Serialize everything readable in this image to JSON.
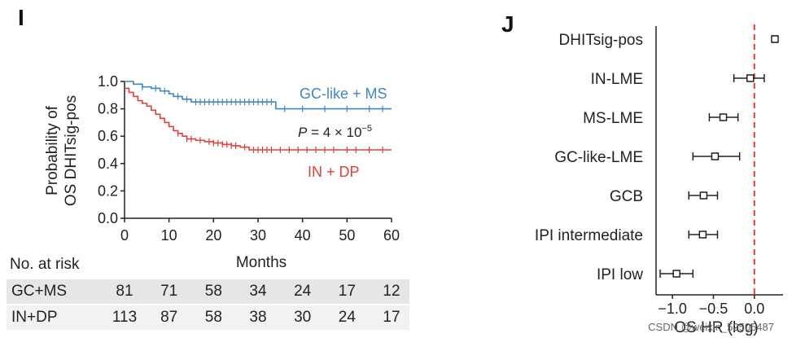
{
  "panels": {
    "left_letter": "I",
    "right_letter": "J"
  },
  "chart_data": [
    {
      "type": "line",
      "title": "",
      "xlabel": "Months",
      "ylabel_line1": "Probability of",
      "ylabel_line2": "OS DHITsig-pos",
      "xlim": [
        0,
        60
      ],
      "ylim": [
        0.0,
        1.0
      ],
      "xticks": [
        "0",
        "10",
        "20",
        "30",
        "40",
        "50",
        "60"
      ],
      "yticks": [
        "0.0",
        "0.2",
        "0.4",
        "0.6",
        "0.8",
        "1.0"
      ],
      "annotation_p": "P",
      "annotation_rest": " = 4 × 10",
      "annotation_exp": "−5",
      "series": [
        {
          "name": "GC-like + MS",
          "color": "#3d87c5",
          "x": [
            0,
            2,
            4,
            6,
            8,
            10,
            11,
            13,
            15,
            34,
            60
          ],
          "y": [
            1.0,
            0.98,
            0.96,
            0.95,
            0.93,
            0.91,
            0.89,
            0.87,
            0.85,
            0.8,
            0.8
          ],
          "censor_x": [
            4,
            7,
            9,
            12,
            14,
            16,
            17,
            18,
            19,
            20,
            21,
            22,
            23,
            24,
            25,
            26,
            27,
            28,
            29,
            30,
            31,
            32,
            33,
            36,
            40,
            45,
            50,
            55,
            58
          ]
        },
        {
          "name": "IN + DP",
          "color": "#e0403a",
          "x": [
            0,
            1,
            2,
            3,
            4,
            5,
            6,
            7,
            8,
            9,
            10,
            11,
            12,
            13,
            14,
            16,
            18,
            20,
            22,
            24,
            26,
            28,
            60
          ],
          "y": [
            0.95,
            0.92,
            0.89,
            0.86,
            0.84,
            0.82,
            0.79,
            0.76,
            0.73,
            0.7,
            0.67,
            0.64,
            0.62,
            0.6,
            0.58,
            0.57,
            0.56,
            0.55,
            0.54,
            0.53,
            0.52,
            0.5,
            0.5
          ],
          "censor_x": [
            12,
            14,
            15,
            17,
            19,
            20,
            21,
            22,
            23,
            24,
            25,
            27,
            29,
            30,
            31,
            32,
            33,
            35,
            37,
            39,
            41,
            43,
            45,
            47,
            50,
            52,
            55,
            58
          ]
        }
      ]
    },
    {
      "type": "forest",
      "xlabel": "OS HR (log)",
      "xticks": [
        "−1.0",
        "−0.5",
        "0.0"
      ],
      "xlim": [
        -1.2,
        0.35
      ],
      "reference_value": 0.0,
      "rows": [
        {
          "label": "DHITsig-pos",
          "est": 0.25,
          "lo": 0.23,
          "hi": 0.27
        },
        {
          "label": "IN-LME",
          "est": -0.05,
          "lo": -0.25,
          "hi": 0.12
        },
        {
          "label": "MS-LME",
          "est": -0.38,
          "lo": -0.55,
          "hi": -0.2
        },
        {
          "label": "GC-like-LME",
          "est": -0.48,
          "lo": -0.75,
          "hi": -0.18
        },
        {
          "label": "GCB",
          "est": -0.62,
          "lo": -0.8,
          "hi": -0.45
        },
        {
          "label": "IPI intermediate",
          "est": -0.63,
          "lo": -0.8,
          "hi": -0.45
        },
        {
          "label": "IPI low",
          "est": -0.95,
          "lo": -1.15,
          "hi": -0.75
        }
      ]
    }
  ],
  "risk_table": {
    "title": "No. at risk",
    "rows": [
      {
        "label": "GC+MS",
        "values": [
          "81",
          "71",
          "58",
          "34",
          "24",
          "17",
          "12"
        ]
      },
      {
        "label": "IN+DP",
        "values": [
          "113",
          "87",
          "58",
          "38",
          "30",
          "24",
          "17"
        ]
      }
    ]
  },
  "watermark": "CSDN @weixin_52505487"
}
